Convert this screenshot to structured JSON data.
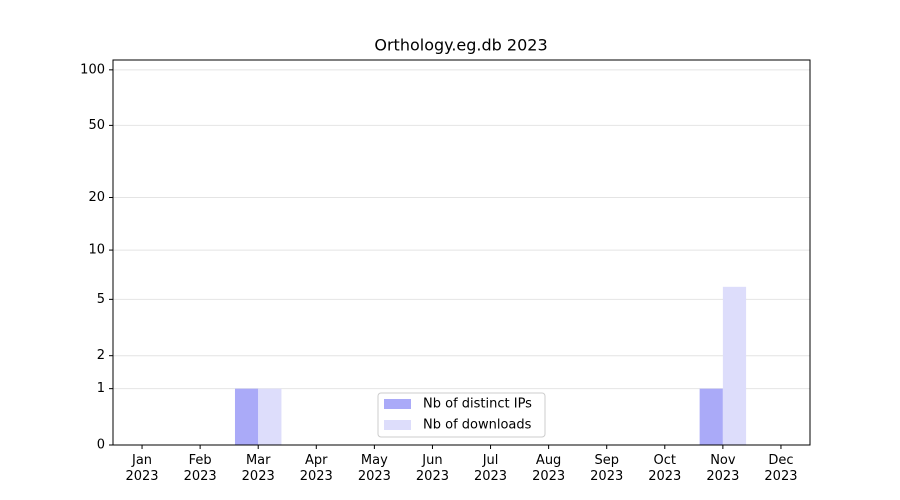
{
  "chart_data": {
    "type": "bar",
    "title": "Orthology.eg.db 2023",
    "categories": [
      "Jan 2023",
      "Feb 2023",
      "Mar 2023",
      "Apr 2023",
      "May 2023",
      "Jun 2023",
      "Jul 2023",
      "Aug 2023",
      "Sep 2023",
      "Oct 2023",
      "Nov 2023",
      "Dec 2023"
    ],
    "series": [
      {
        "name": "Nb of distinct IPs",
        "color": "#aaaaf8",
        "values": [
          0,
          0,
          1,
          0,
          0,
          0,
          0,
          0,
          0,
          0,
          1,
          0
        ]
      },
      {
        "name": "Nb of downloads",
        "color": "#ddddfb",
        "values": [
          0,
          0,
          1,
          0,
          0,
          0,
          0,
          0,
          0,
          0,
          6,
          0
        ]
      }
    ],
    "yscale": "log1p",
    "ylim": [
      0,
      113
    ],
    "yticks": [
      0,
      1,
      2,
      5,
      10,
      20,
      50,
      100
    ],
    "grid": true,
    "legend": "lower center"
  }
}
